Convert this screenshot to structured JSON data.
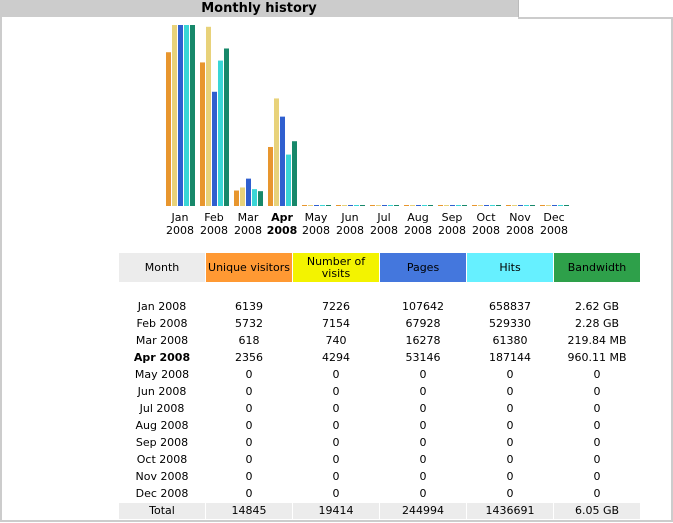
{
  "title": "Monthly history",
  "chart_data": {
    "type": "bar",
    "categories": [
      "Jan 2008",
      "Feb 2008",
      "Mar 2008",
      "Apr 2008",
      "May 2008",
      "Jun 2008",
      "Jul 2008",
      "Aug 2008",
      "Sep 2008",
      "Oct 2008",
      "Nov 2008",
      "Dec 2008"
    ],
    "month_labels": [
      [
        "Jan",
        "2008"
      ],
      [
        "Feb",
        "2008"
      ],
      [
        "Mar",
        "2008"
      ],
      [
        "Apr",
        "2008"
      ],
      [
        "May",
        "2008"
      ],
      [
        "Jun",
        "2008"
      ],
      [
        "Jul",
        "2008"
      ],
      [
        "Aug",
        "2008"
      ],
      [
        "Sep",
        "2008"
      ],
      [
        "Oct",
        "2008"
      ],
      [
        "Nov",
        "2008"
      ],
      [
        "Dec",
        "2008"
      ]
    ],
    "current_index": 3,
    "series": [
      {
        "name": "Unique visitors",
        "color": "#e8962e",
        "values": [
          6139,
          5732,
          618,
          2356,
          0,
          0,
          0,
          0,
          0,
          0,
          0,
          0
        ]
      },
      {
        "name": "Number of visits",
        "color": "#e8d27a",
        "values": [
          7226,
          7154,
          740,
          4294,
          0,
          0,
          0,
          0,
          0,
          0,
          0,
          0
        ]
      },
      {
        "name": "Pages",
        "color": "#2f5fcf",
        "values": [
          107642,
          67928,
          16278,
          53146,
          0,
          0,
          0,
          0,
          0,
          0,
          0,
          0
        ]
      },
      {
        "name": "Hits",
        "color": "#3ad6d6",
        "values": [
          658837,
          529330,
          61380,
          187144,
          0,
          0,
          0,
          0,
          0,
          0,
          0,
          0
        ]
      },
      {
        "name": "Bandwidth",
        "color": "#17886a",
        "values": [
          2.62,
          2.28,
          0.2147,
          0.9376,
          0,
          0,
          0,
          0,
          0,
          0,
          0,
          0
        ]
      }
    ],
    "series_max": [
      7226,
      7226,
      107642,
      658837,
      2.62
    ]
  },
  "table": {
    "headers": [
      "Month",
      "Unique visitors",
      "Number of visits",
      "Pages",
      "Hits",
      "Bandwidth"
    ],
    "rows": [
      [
        "Jan 2008",
        "6139",
        "7226",
        "107642",
        "658837",
        "2.62 GB"
      ],
      [
        "Feb 2008",
        "5732",
        "7154",
        "67928",
        "529330",
        "2.28 GB"
      ],
      [
        "Mar 2008",
        "618",
        "740",
        "16278",
        "61380",
        "219.84 MB"
      ],
      [
        "Apr 2008",
        "2356",
        "4294",
        "53146",
        "187144",
        "960.11 MB"
      ],
      [
        "May 2008",
        "0",
        "0",
        "0",
        "0",
        "0"
      ],
      [
        "Jun 2008",
        "0",
        "0",
        "0",
        "0",
        "0"
      ],
      [
        "Jul 2008",
        "0",
        "0",
        "0",
        "0",
        "0"
      ],
      [
        "Aug 2008",
        "0",
        "0",
        "0",
        "0",
        "0"
      ],
      [
        "Sep 2008",
        "0",
        "0",
        "0",
        "0",
        "0"
      ],
      [
        "Oct 2008",
        "0",
        "0",
        "0",
        "0",
        "0"
      ],
      [
        "Nov 2008",
        "0",
        "0",
        "0",
        "0",
        "0"
      ],
      [
        "Dec 2008",
        "0",
        "0",
        "0",
        "0",
        "0"
      ]
    ],
    "total": [
      "Total",
      "14845",
      "19414",
      "244994",
      "1436691",
      "6.05 GB"
    ],
    "bold_row_index": 3
  }
}
